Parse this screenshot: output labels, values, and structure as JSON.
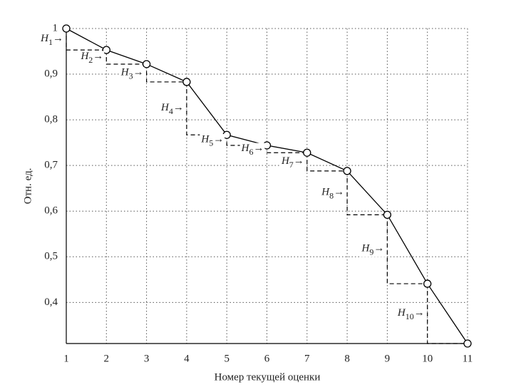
{
  "chart_data": {
    "type": "line",
    "x_label": "Номер текущей оценки",
    "y_label": "Отн. ед.",
    "x": [
      1,
      2,
      3,
      4,
      5,
      6,
      7,
      8,
      9,
      10,
      11
    ],
    "series": [
      {
        "color": "#000000",
        "values": [
          1.0,
          0.953,
          0.922,
          0.883,
          0.767,
          0.744,
          0.728,
          0.688,
          0.592,
          0.441,
          0.31
        ]
      }
    ],
    "xlim": [
      1,
      11
    ],
    "xticks": [
      1,
      2,
      3,
      4,
      5,
      6,
      7,
      8,
      9,
      10,
      11
    ],
    "ylim": [
      0.31,
      1.0
    ],
    "yticks": [
      {
        "value": 0.4,
        "label": "0,4"
      },
      {
        "value": 0.5,
        "label": "0,5"
      },
      {
        "value": 0.6,
        "label": "0,6"
      },
      {
        "value": 0.7,
        "label": "0,7"
      },
      {
        "value": 0.8,
        "label": "0,8"
      },
      {
        "value": 0.9,
        "label": "0,9"
      },
      1
    ],
    "grid": true,
    "annotations": [
      {
        "text": "H",
        "subscript": "1",
        "arrow": "→"
      },
      {
        "text": "H",
        "subscript": "2",
        "arrow": "→"
      },
      {
        "text": "H",
        "subscript": "3",
        "arrow": "→"
      },
      {
        "text": "H",
        "subscript": "4",
        "arrow": "→"
      },
      {
        "text": "H",
        "subscript": "5",
        "arrow": "→"
      },
      {
        "text": "H",
        "subscript": "6",
        "arrow": "→"
      },
      {
        "text": "H",
        "subscript": "7",
        "arrow": "→"
      },
      {
        "text": "H",
        "subscript": "8",
        "arrow": "→"
      },
      {
        "text": "H",
        "subscript": "9",
        "arrow": "→"
      },
      {
        "text": "H",
        "subscript": "10",
        "arrow": "→"
      }
    ]
  }
}
